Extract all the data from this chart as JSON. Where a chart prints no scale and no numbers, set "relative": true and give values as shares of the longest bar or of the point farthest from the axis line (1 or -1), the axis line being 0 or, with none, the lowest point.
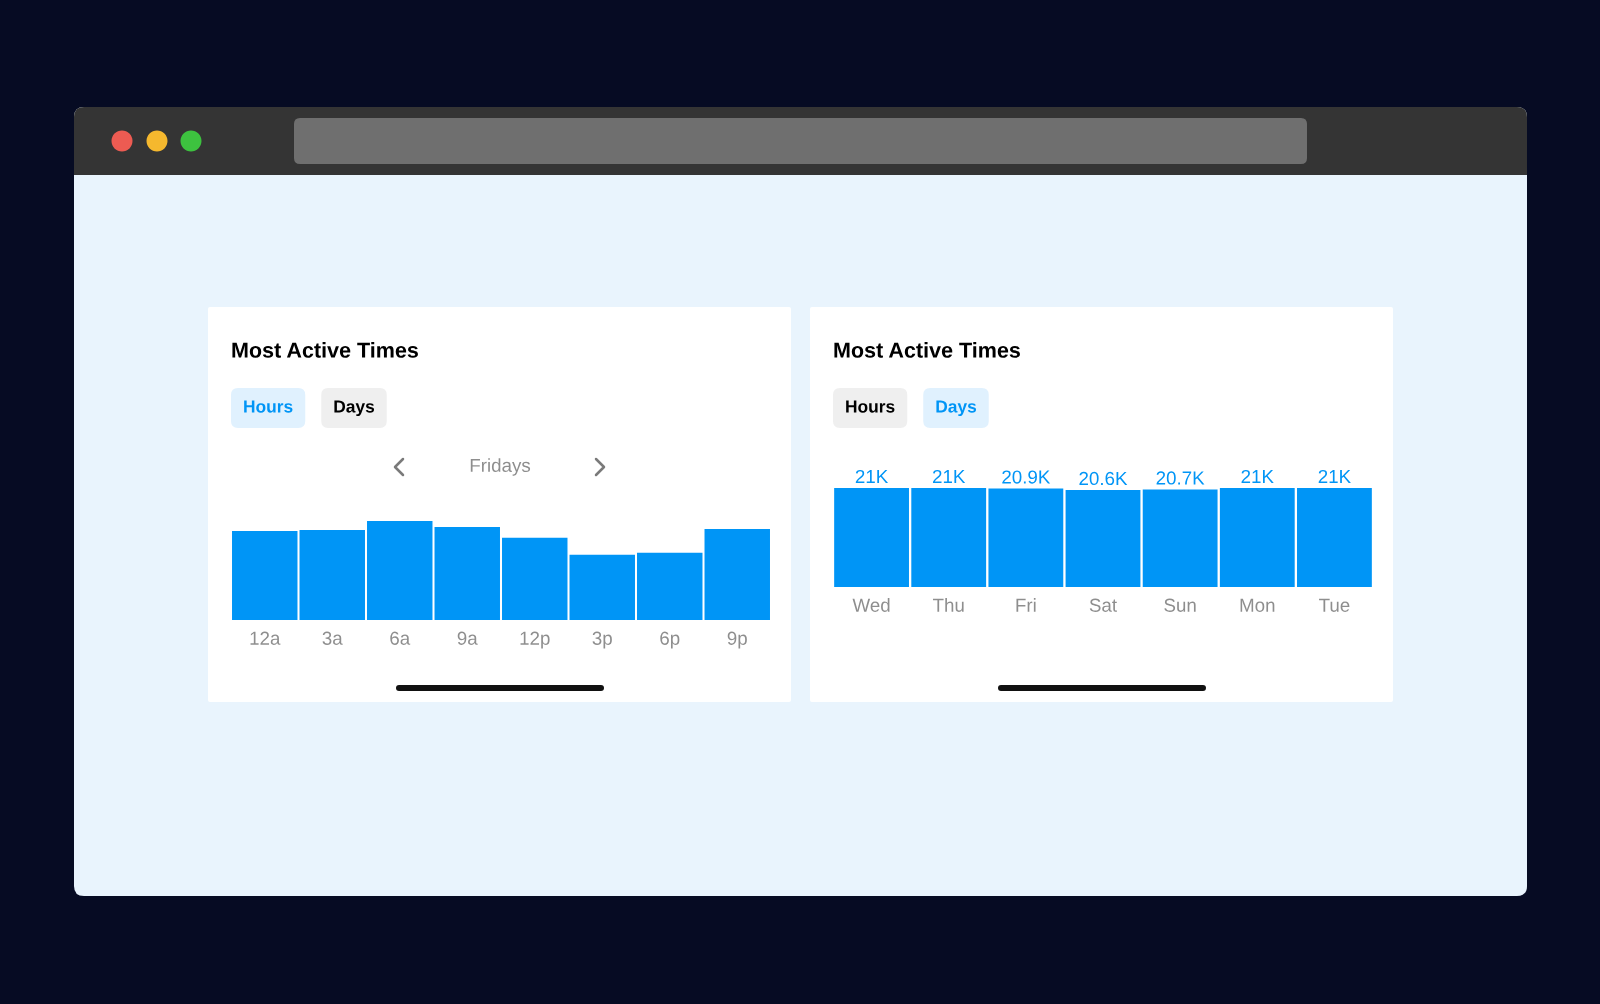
{
  "chart_data": [
    {
      "type": "bar",
      "title": "Most Active Times",
      "subtitle": "Fridays",
      "annotations": [
        "Hours",
        "Days"
      ],
      "categories": [
        "12a",
        "3a",
        "6a",
        "9a",
        "12p",
        "3p",
        "6p",
        "9p"
      ],
      "values": [
        0.9,
        0.91,
        1,
        0.94,
        0.83,
        0.66,
        0.68,
        0.92
      ],
      "relative": true,
      "color": "#0095f6"
    },
    {
      "type": "bar",
      "title": "Most Active Times",
      "annotations": [
        "Hours",
        "Days"
      ],
      "categories": [
        "Wed",
        "Thu",
        "Fri",
        "Sat",
        "Sun",
        "Mon",
        "Tue"
      ],
      "values": [
        21000,
        21000,
        20900,
        20600,
        20700,
        21000,
        21000
      ],
      "value_labels": [
        "21K",
        "21K",
        "20.9K",
        "20.6K",
        "20.7K",
        "21K",
        "21K"
      ],
      "color": "#0095f6",
      "tick_labels": "x"
    }
  ]
}
